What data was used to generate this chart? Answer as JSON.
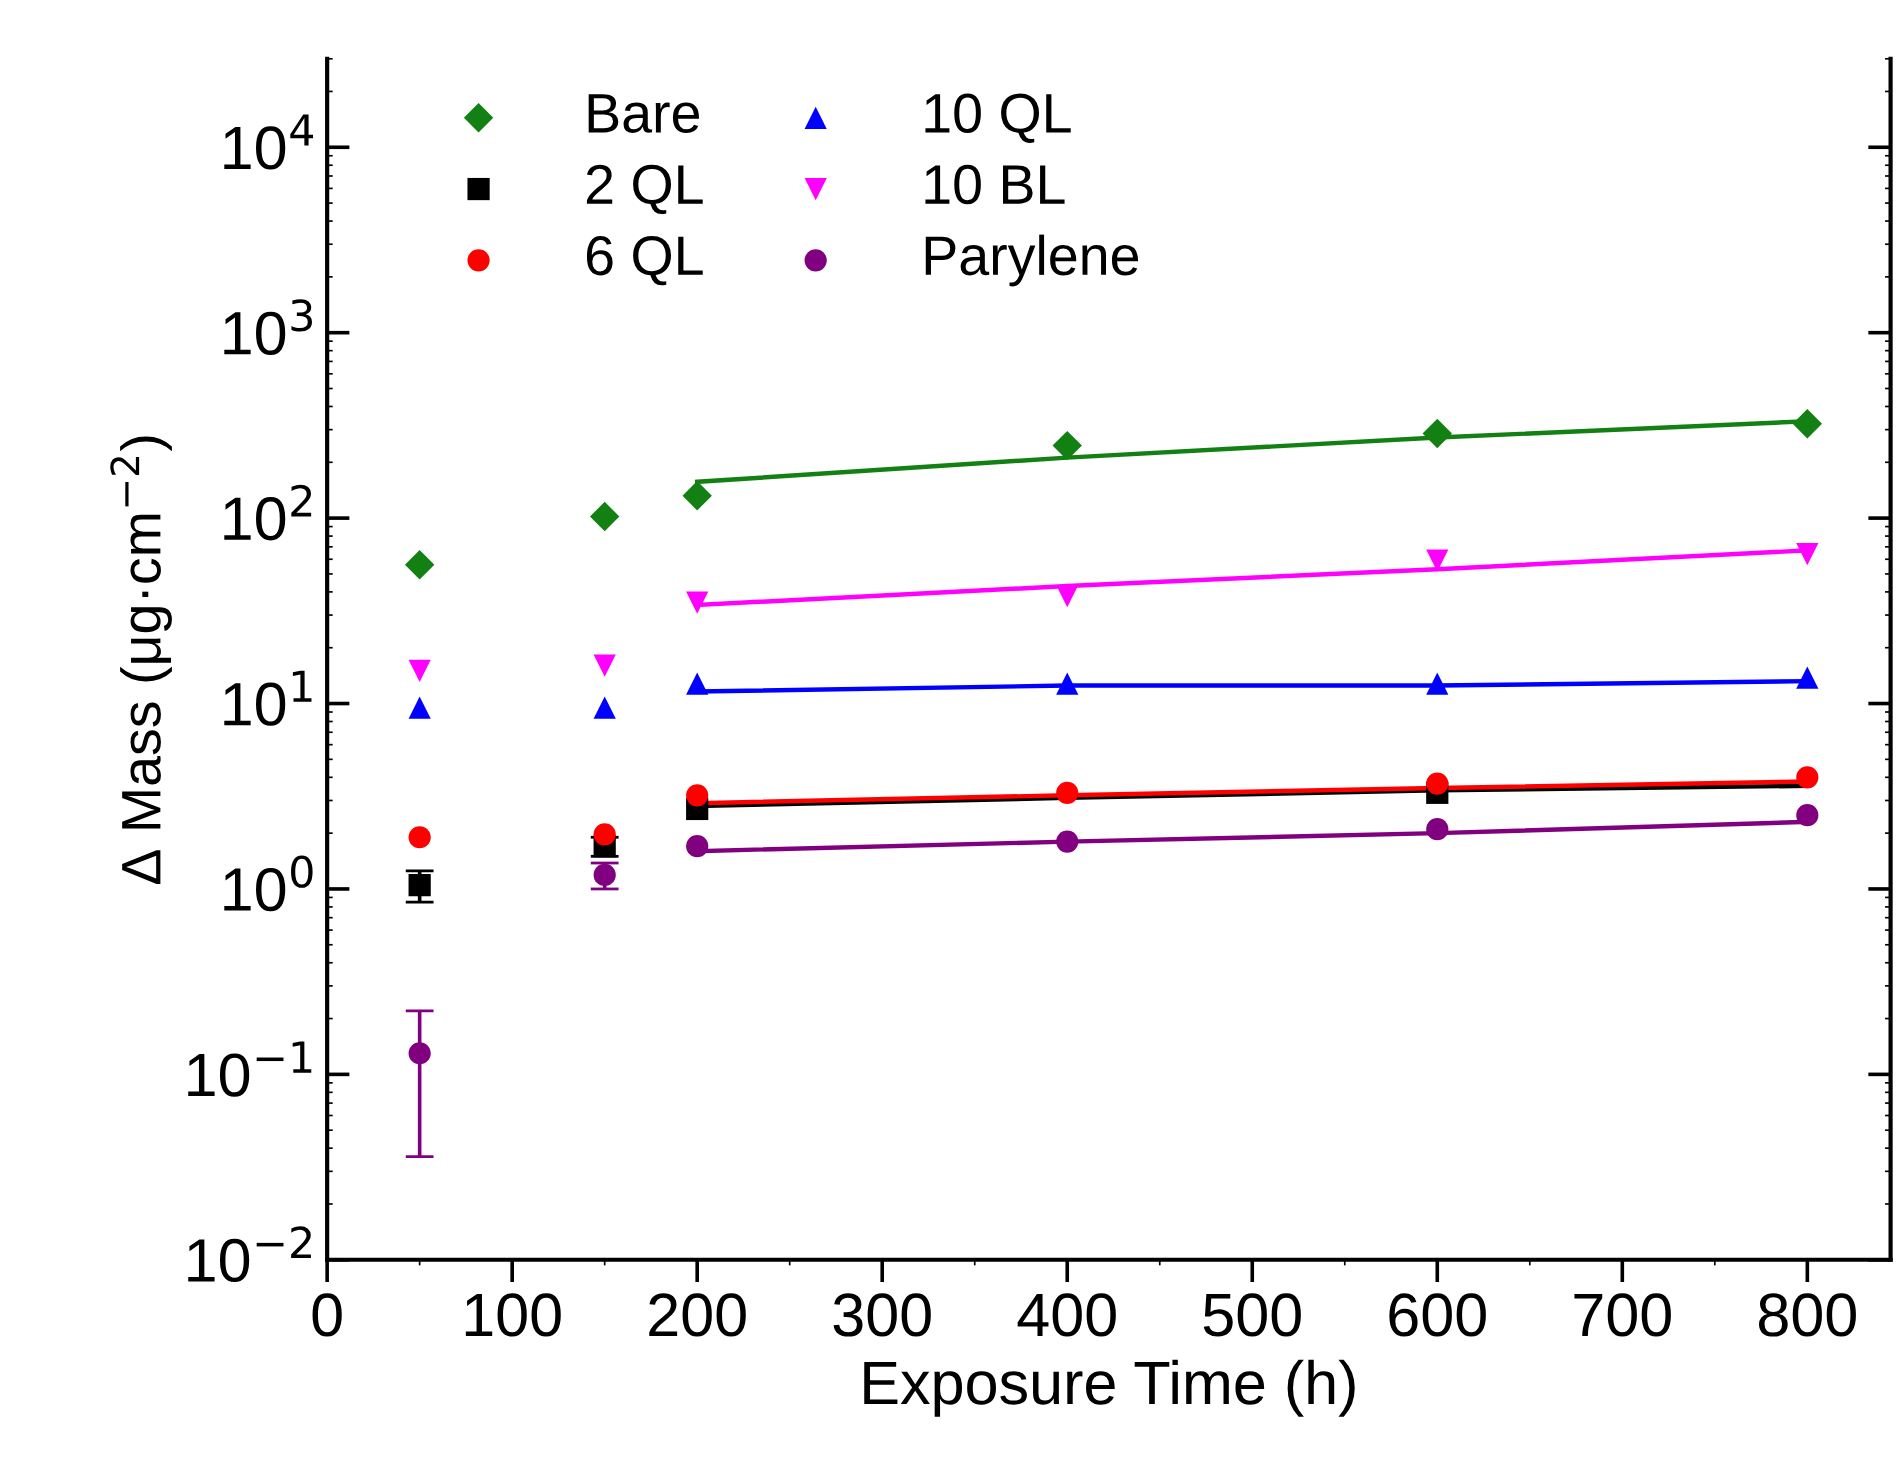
{
  "chart_data": {
    "type": "scatter",
    "xlabel": "Exposure Time (h)",
    "ylabel": "Δ Mass (μg·cm$^{−2}$)",
    "log": "y",
    "xlim": [
      0,
      845
    ],
    "ylim": [
      0.01,
      30000
    ],
    "xticks": [
      0,
      100,
      200,
      300,
      400,
      500,
      600,
      700,
      800
    ],
    "yticks": [
      {
        "value": 0.01,
        "label": "10$^{−2}$"
      },
      {
        "value": 0.1,
        "label": "10$^{−1}$"
      },
      {
        "value": 1,
        "label": "10$^{0}$"
      },
      {
        "value": 10,
        "label": "10$^{1}$"
      },
      {
        "value": 100,
        "label": "10$^{2}$"
      },
      {
        "value": 1000,
        "label": "10$^{3}$"
      },
      {
        "value": 10000,
        "label": "10$^{4}$"
      }
    ],
    "grid": false,
    "legend": "top left",
    "tick_labels": true,
    "series": [
      {
        "name": "Bare",
        "color": "#138013",
        "marker": "diamond",
        "x": [
          50,
          150,
          200,
          400,
          600,
          800
        ],
        "values": [
          56,
          102,
          132,
          246,
          286,
          323
        ]
      },
      {
        "name": "2 QL",
        "color": "#000000",
        "marker": "square",
        "x": [
          50,
          150,
          200,
          600
        ],
        "values": [
          1.05,
          1.7,
          2.7,
          3.3
        ],
        "errors": [
          0.2,
          0.2,
          null,
          null
        ]
      },
      {
        "name": "6 QL",
        "color": "#ff0000",
        "marker": "circle",
        "x": [
          50,
          150,
          200,
          400,
          600,
          800
        ],
        "values": [
          1.9,
          1.97,
          3.2,
          3.3,
          3.7,
          4.0
        ]
      },
      {
        "name": "10 QL",
        "color": "#0000ff",
        "marker": "triangle",
        "x": [
          50,
          150,
          200,
          400,
          600,
          800
        ],
        "values": [
          9.5,
          9.5,
          12.8,
          12.8,
          12.8,
          13.8
        ]
      },
      {
        "name": "10 BL",
        "color": "#ff00ff",
        "marker": "triangle_down",
        "x": [
          50,
          150,
          200,
          400,
          600,
          800
        ],
        "values": [
          15,
          16,
          35,
          38,
          59,
          64
        ]
      },
      {
        "name": "Parylene",
        "color": "#800080",
        "marker": "circle",
        "x": [
          50,
          150,
          200,
          400,
          600,
          800
        ],
        "values": [
          0.13,
          1.19,
          1.7,
          1.8,
          2.1,
          2.5
        ],
        "errors": [
          [
            0.036,
            0.22
          ],
          [
            1.0,
            1.38
          ],
          null,
          null,
          null,
          null
        ]
      },
      {
        "type": "line",
        "color": "#138013",
        "x": [
          200,
          400,
          600,
          800
        ],
        "values": [
          157,
          212,
          272,
          333
        ]
      },
      {
        "type": "line",
        "color": "#000000",
        "x": [
          200,
          400,
          600,
          800
        ],
        "values": [
          2.8,
          3.1,
          3.4,
          3.6
        ]
      },
      {
        "type": "line",
        "color": "#ff0000",
        "x": [
          200,
          400,
          600,
          800
        ],
        "values": [
          2.9,
          3.2,
          3.5,
          3.8
        ]
      },
      {
        "type": "line",
        "color": "#0000ff",
        "x": [
          200,
          400,
          600,
          800
        ],
        "values": [
          11.6,
          12.5,
          12.5,
          13.2
        ]
      },
      {
        "type": "line",
        "color": "#ff00ff",
        "x": [
          200,
          400,
          600,
          800
        ],
        "values": [
          34,
          43,
          53,
          67
        ]
      },
      {
        "type": "line",
        "color": "#800080",
        "x": [
          200,
          400,
          600,
          800
        ],
        "values": [
          1.6,
          1.8,
          2.0,
          2.3
        ]
      }
    ]
  }
}
